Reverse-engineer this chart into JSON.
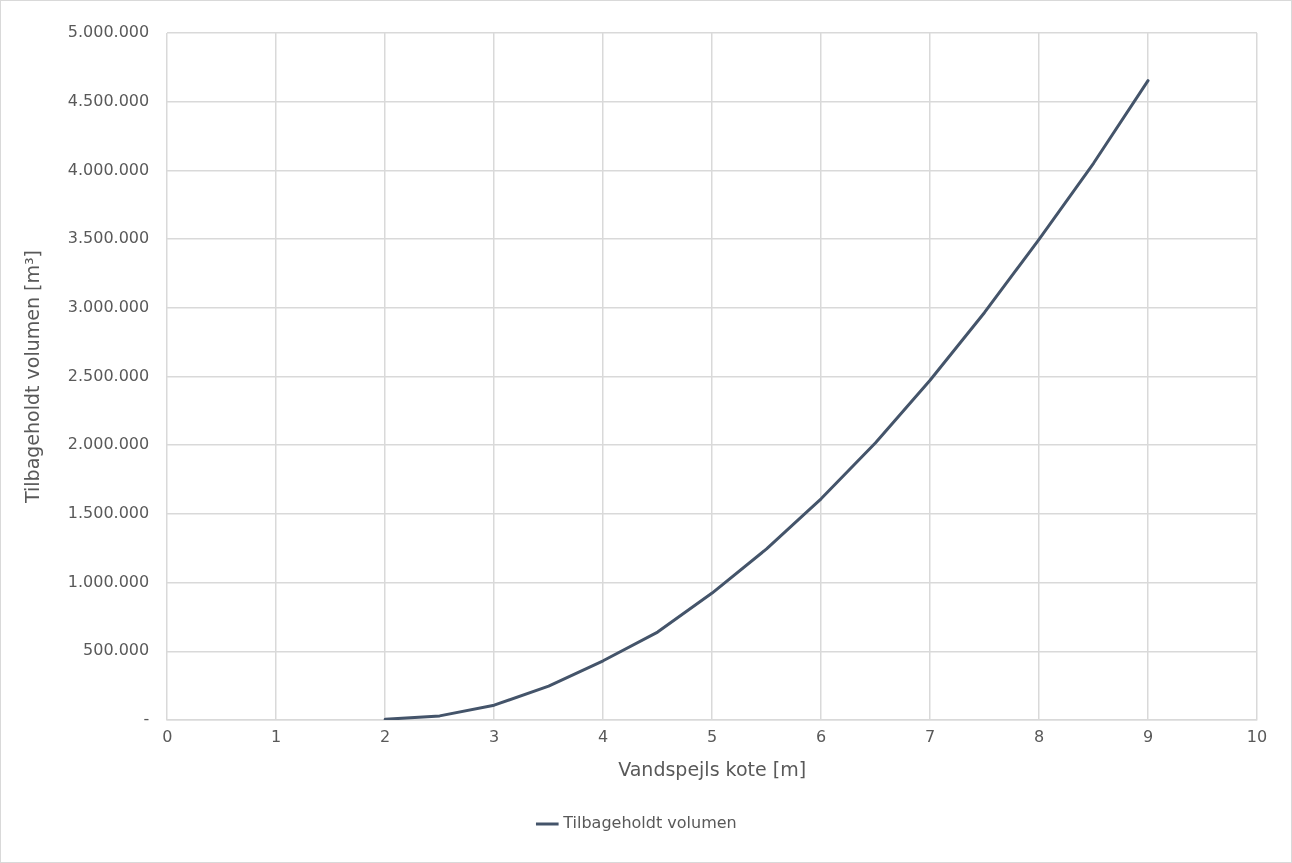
{
  "chart_data": {
    "type": "line",
    "xlabel": "Vandspejls kote [m]",
    "ylabel": "Tilbageholdt volumen [m³]",
    "x": [
      2,
      2.5,
      3,
      3.5,
      4,
      4.5,
      5,
      5.5,
      6,
      6.5,
      7,
      7.5,
      8,
      8.5,
      9
    ],
    "series": [
      {
        "name": "Tilbageholdt volumen",
        "color": "#44546a",
        "values": [
          5000,
          30000,
          108000,
          246000,
          431000,
          640000,
          924000,
          1245000,
          1610000,
          2018000,
          2473000,
          2966000,
          3498000,
          4052000,
          4653000
        ]
      }
    ],
    "xlim": [
      0,
      10
    ],
    "xticks": [
      0,
      1,
      2,
      3,
      4,
      5,
      6,
      7,
      8,
      9,
      10
    ],
    "ylim": [
      0,
      5000000
    ],
    "yticks": [
      {
        "value": 0,
        "label": "-"
      },
      {
        "value": 500000,
        "label": "500.000"
      },
      {
        "value": 1000000,
        "label": "1.000.000"
      },
      {
        "value": 1500000,
        "label": "1.500.000"
      },
      {
        "value": 2000000,
        "label": "2.000.000"
      },
      {
        "value": 2500000,
        "label": "2.500.000"
      },
      {
        "value": 3000000,
        "label": "3.000.000"
      },
      {
        "value": 3500000,
        "label": "3.500.000"
      },
      {
        "value": 4000000,
        "label": "4.000.000"
      },
      {
        "value": 4500000,
        "label": "4.500.000"
      },
      {
        "value": 5000000,
        "label": "5.000.000"
      }
    ],
    "grid": true,
    "legend": "bottom",
    "marker": "none",
    "line_style": "solid"
  }
}
